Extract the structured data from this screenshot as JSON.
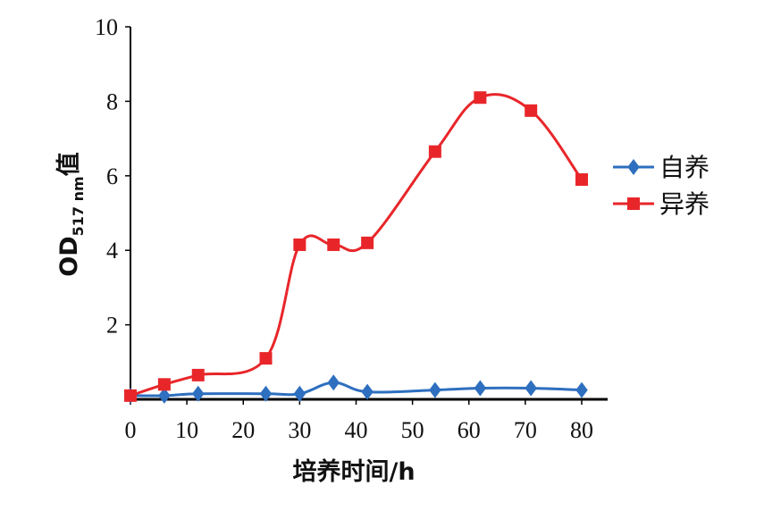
{
  "chart_data": {
    "type": "line",
    "xlabel": "培养时间/h",
    "ylabel_main": "OD",
    "ylabel_sub": "517 nm",
    "ylabel_suffix": "值",
    "xlim": [
      0,
      80
    ],
    "ylim": [
      0,
      10
    ],
    "xticks": [
      "0",
      "10",
      "20",
      "30",
      "40",
      "50",
      "60",
      "70",
      "80"
    ],
    "yticks": [
      "2",
      "4",
      "6",
      "8",
      "10"
    ],
    "grid": false,
    "legend_position": "right",
    "series": [
      {
        "name": "自养",
        "color": "#2e6fbf",
        "marker": "diamond",
        "points": [
          [
            0,
            0.1
          ],
          [
            6,
            0.1
          ],
          [
            12,
            0.15
          ],
          [
            24,
            0.15
          ],
          [
            30,
            0.15
          ],
          [
            36,
            0.45
          ],
          [
            42,
            0.2
          ],
          [
            54,
            0.25
          ],
          [
            62,
            0.3
          ],
          [
            71,
            0.3
          ],
          [
            80,
            0.25
          ]
        ]
      },
      {
        "name": "异养",
        "color": "#e8262a",
        "marker": "square",
        "points": [
          [
            0,
            0.1
          ],
          [
            6,
            0.4
          ],
          [
            12,
            0.65
          ],
          [
            24,
            1.1
          ],
          [
            30,
            4.15
          ],
          [
            36,
            4.15
          ],
          [
            42,
            4.2
          ],
          [
            54,
            6.65
          ],
          [
            62,
            8.1
          ],
          [
            71,
            7.75
          ],
          [
            80,
            5.9
          ]
        ]
      }
    ]
  }
}
